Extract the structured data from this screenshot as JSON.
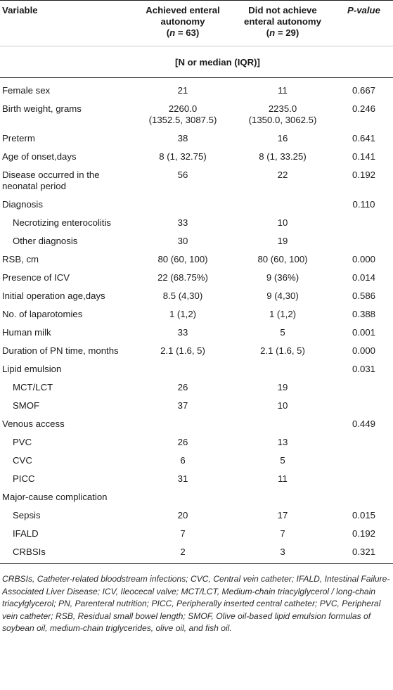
{
  "header": {
    "variable": "Variable",
    "achieved_line1": "Achieved enteral",
    "achieved_line2": "autonomy",
    "achieved_n": "(n = 63)",
    "not_achieved_line1": "Did not achieve",
    "not_achieved_line2": "enteral autonomy",
    "not_achieved_n": "(n = 29)",
    "pvalue": "P-value",
    "subheader": "[N or median (IQR)]"
  },
  "rows": [
    {
      "label": "Female sex",
      "a": "21",
      "b": "11",
      "p": "0.667"
    },
    {
      "label": "Birth weight, grams",
      "a": "2260.0",
      "a2": "(1352.5, 3087.5)",
      "b": "2235.0",
      "b2": "(1350.0, 3062.5)",
      "p": "0.246"
    },
    {
      "label": "Preterm",
      "a": "38",
      "b": "16",
      "p": "0.641"
    },
    {
      "label": "Age of onset,days",
      "a": "8 (1, 32.75)",
      "b": "8 (1, 33.25)",
      "p": "0.141"
    },
    {
      "label": "Disease occurred in the",
      "label2": "neonatal period",
      "a": "56",
      "b": "22",
      "p": "0.192"
    },
    {
      "label": "Diagnosis",
      "a": "",
      "b": "",
      "p": "0.110"
    },
    {
      "label": "Necrotizing enterocolitis",
      "a": "33",
      "b": "10",
      "p": ""
    },
    {
      "label": "Other diagnosis",
      "a": "30",
      "b": "19",
      "p": ""
    },
    {
      "label": "RSB, cm",
      "a": "80 (60, 100)",
      "b": "80 (60, 100)",
      "p": "0.000"
    },
    {
      "label": "Presence of ICV",
      "a": "22 (68.75%)",
      "b": "9 (36%)",
      "p": "0.014"
    },
    {
      "label": "Initial operation age,days",
      "a": "8.5 (4,30)",
      "b": "9 (4,30)",
      "p": "0.586"
    },
    {
      "label": "No. of laparotomies",
      "a": "1 (1,2)",
      "b": "1 (1,2)",
      "p": "0.388"
    },
    {
      "label": "Human milk",
      "a": "33",
      "b": "5",
      "p": "0.001"
    },
    {
      "label": "Duration of PN time, months",
      "a": "2.1 (1.6, 5)",
      "b": "2.1 (1.6, 5)",
      "p": "0.000"
    },
    {
      "label": "Lipid emulsion",
      "a": "",
      "b": "",
      "p": "0.031"
    },
    {
      "label": "MCT/LCT",
      "a": "26",
      "b": "19",
      "p": ""
    },
    {
      "label": "SMOF",
      "a": "37",
      "b": "10",
      "p": ""
    },
    {
      "label": "Venous access",
      "a": "",
      "b": "",
      "p": "0.449"
    },
    {
      "label": "PVC",
      "a": "26",
      "b": "13",
      "p": ""
    },
    {
      "label": "CVC",
      "a": "6",
      "b": "5",
      "p": ""
    },
    {
      "label": "PICC",
      "a": "31",
      "b": "11",
      "p": ""
    },
    {
      "label": "Major-cause complication",
      "a": "",
      "b": "",
      "p": ""
    },
    {
      "label": "Sepsis",
      "a": "20",
      "b": "17",
      "p": "0.015"
    },
    {
      "label": "IFALD",
      "a": "7",
      "b": "7",
      "p": "0.192"
    },
    {
      "label": "CRBSIs",
      "a": "2",
      "b": "3",
      "p": "0.321"
    }
  ],
  "footnote": "CRBSIs, Catheter-related bloodstream infections; CVC, Central vein catheter; IFALD, Intestinal Failure-Associated Liver Disease; ICV, Ileocecal valve; MCT/LCT, Medium-chain triacylglycerol / long-chain triacylglycerol; PN, Parenteral nutrition; PICC, Peripherally inserted central catheter; PVC, Peripheral vein catheter; RSB, Residual small bowel length; SMOF, Olive oil-based lipid emulsion formulas of soybean oil, medium-chain triglycerides, olive oil, and fish oil."
}
